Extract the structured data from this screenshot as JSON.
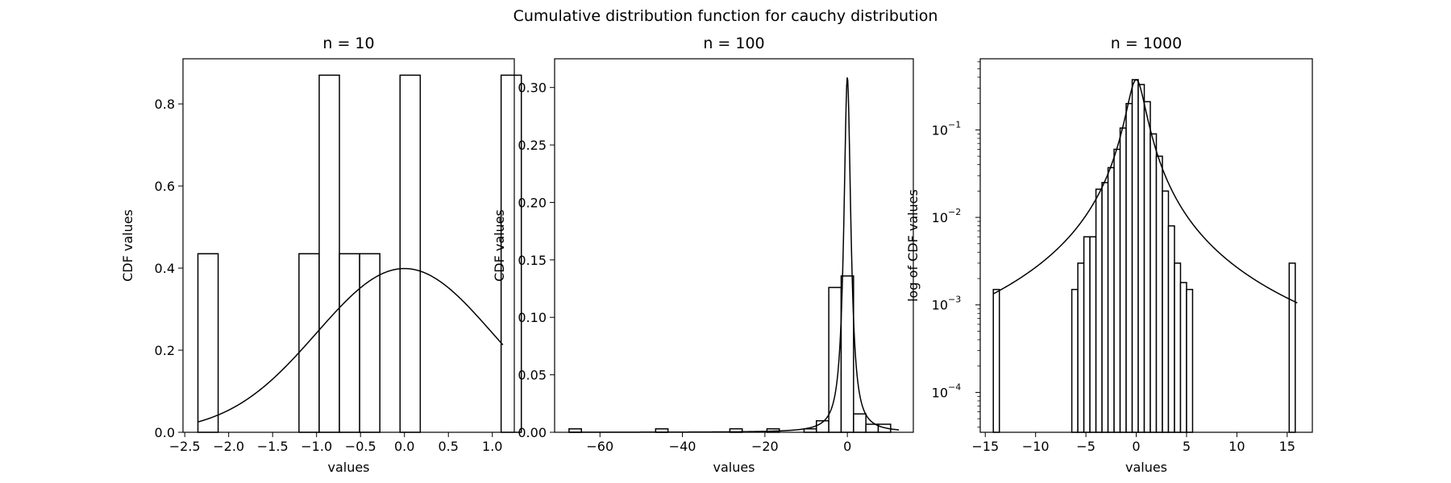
{
  "figure": {
    "title": "Cumulative distribution function for cauchy distribution"
  },
  "chart_data": [
    {
      "type": "bar",
      "title": "n = 10",
      "xlabel": "values",
      "ylabel": "CDF values",
      "xlim": [
        -2.52,
        1.25
      ],
      "ylim": [
        0,
        0.91
      ],
      "yscale": "linear",
      "xticks": [
        -2.5,
        -2.0,
        -1.5,
        -1.0,
        -0.5,
        0.0,
        0.5,
        1.0
      ],
      "xticklabels": [
        "−2.5",
        "−2.0",
        "−1.5",
        "−1.0",
        "−0.5",
        "0.0",
        "0.5",
        "1.0"
      ],
      "yticks": [
        0.0,
        0.2,
        0.4,
        0.6,
        0.8
      ],
      "yticklabels": [
        "0.0",
        "0.2",
        "0.4",
        "0.6",
        "0.8"
      ],
      "grid": false,
      "histogram": {
        "x_start": -2.35,
        "bin_width": 0.23,
        "heights": [
          0.435,
          0,
          0,
          0,
          0,
          0.435,
          0.87,
          0.435,
          0.435,
          0,
          0.87,
          0,
          0,
          0,
          0,
          0.87
        ]
      },
      "curve": {
        "name": "",
        "function": "normal_pdf",
        "params": {
          "mu": 0,
          "sigma": 1
        },
        "x_range": [
          -2.35,
          1.12
        ]
      }
    },
    {
      "type": "bar",
      "title": "n = 100",
      "xlabel": "values",
      "ylabel": "CDF values",
      "xlim": [
        -71,
        16
      ],
      "ylim": [
        0,
        0.325
      ],
      "yscale": "linear",
      "xticks": [
        -60,
        -40,
        -20,
        0
      ],
      "xticklabels": [
        "−60",
        "−40",
        "−20",
        "0"
      ],
      "yticks": [
        0.0,
        0.05,
        0.1,
        0.15,
        0.2,
        0.25,
        0.3
      ],
      "yticklabels": [
        "0.00",
        "0.05",
        "0.10",
        "0.15",
        "0.20",
        "0.25",
        "0.30"
      ],
      "grid": false,
      "histogram": {
        "x_start": -67.5,
        "bin_width": 3,
        "heights": [
          0.003,
          0,
          0,
          0,
          0,
          0,
          0,
          0.003,
          0,
          0,
          0,
          0,
          0,
          0.003,
          0,
          0,
          0.003,
          0,
          0,
          0.003,
          0.01,
          0.126,
          0.136,
          0.016,
          0.007,
          0.007
        ]
      },
      "curve": {
        "name": "",
        "function": "cauchy_pdf",
        "params": {
          "x0": 0,
          "gamma": 1.03
        },
        "x_range": [
          -67.5,
          12.5
        ]
      }
    },
    {
      "type": "bar",
      "title": "n = 1000",
      "xlabel": "values",
      "ylabel": "log of CDF values",
      "xlim": [
        -15.5,
        17.5
      ],
      "ylim": [
        3.5e-05,
        0.65
      ],
      "yscale": "log",
      "xticks": [
        -15,
        -10,
        -5,
        0,
        5,
        10,
        15
      ],
      "xticklabels": [
        "−15",
        "−10",
        "−5",
        "0",
        "5",
        "10",
        "15"
      ],
      "yticks": [
        0.0001,
        0.001,
        0.01,
        0.1
      ],
      "yticklabels": [
        {
          "base": "10",
          "exp": "−4"
        },
        {
          "base": "10",
          "exp": "−3"
        },
        {
          "base": "10",
          "exp": "−2"
        },
        {
          "base": "10",
          "exp": "−1"
        }
      ],
      "grid": false,
      "histogram": {
        "x_start": -14.2,
        "bin_width": 0.6,
        "heights": [
          0.0015,
          0,
          0,
          0,
          0,
          0,
          0,
          0,
          0,
          0,
          0,
          0,
          0,
          0.0015,
          0.003,
          0.006,
          0.006,
          0.021,
          0.025,
          0.037,
          0.06,
          0.105,
          0.2,
          0.375,
          0.33,
          0.21,
          0.09,
          0.05,
          0.02,
          0.008,
          0.003,
          0.0018,
          0.0015,
          0,
          0,
          0,
          0,
          0,
          0,
          0,
          0,
          0,
          0,
          0,
          0,
          0,
          0,
          0,
          0,
          0.003
        ]
      },
      "curve": {
        "name": "",
        "function": "cauchy_pdf",
        "params": {
          "x0": 0,
          "gamma": 0.85
        },
        "x_range": [
          -14.2,
          16
        ]
      }
    }
  ]
}
